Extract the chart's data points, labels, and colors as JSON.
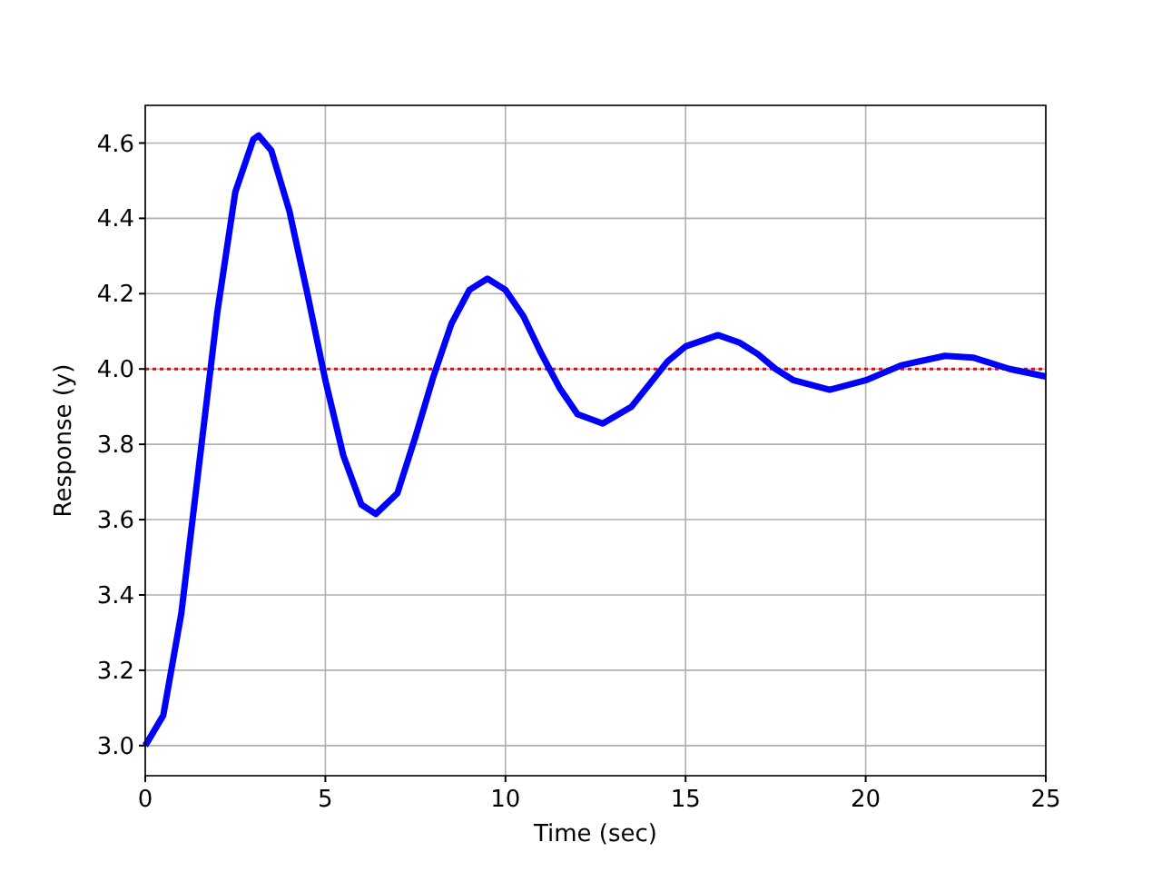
{
  "chart_data": {
    "type": "line",
    "xlabel": "Time (sec)",
    "ylabel": "Response (y)",
    "xlim": [
      0,
      25
    ],
    "ylim": [
      2.92,
      4.7
    ],
    "xticks": [
      0,
      5,
      10,
      15,
      20,
      25
    ],
    "yticks": [
      {
        "value": 3.0,
        "label": "3.0"
      },
      {
        "value": 3.2,
        "label": "3.2"
      },
      {
        "value": 3.4,
        "label": "3.4"
      },
      {
        "value": 3.6,
        "label": "3.6"
      },
      {
        "value": 3.8,
        "label": "3.8"
      },
      {
        "value": 4.0,
        "label": "4.0"
      },
      {
        "value": 4.2,
        "label": "4.2"
      },
      {
        "value": 4.4,
        "label": "4.4"
      },
      {
        "value": 4.6,
        "label": "4.6"
      }
    ],
    "grid": true,
    "line_style": "solid",
    "x": [
      0,
      0.5,
      1,
      1.5,
      2,
      2.5,
      3,
      3.15,
      3.5,
      4,
      4.5,
      5,
      5.5,
      6,
      6.4,
      7,
      7.5,
      8,
      8.5,
      9,
      9.5,
      10,
      10.5,
      11,
      11.5,
      12,
      12.7,
      13.5,
      14,
      14.5,
      15,
      15.9,
      16.5,
      17,
      17.5,
      18,
      19,
      20,
      20.5,
      21,
      22.2,
      23,
      24,
      25
    ],
    "series": [
      {
        "color": "#0000ff",
        "values": [
          3.0,
          3.08,
          3.35,
          3.75,
          4.15,
          4.47,
          4.61,
          4.62,
          4.58,
          4.42,
          4.2,
          3.97,
          3.77,
          3.64,
          3.615,
          3.67,
          3.82,
          3.98,
          4.12,
          4.21,
          4.24,
          4.21,
          4.14,
          4.04,
          3.95,
          3.88,
          3.855,
          3.9,
          3.96,
          4.02,
          4.06,
          4.09,
          4.07,
          4.04,
          4.0,
          3.97,
          3.945,
          3.97,
          3.99,
          4.01,
          4.035,
          4.03,
          4.0,
          3.98
        ]
      }
    ],
    "ref_lines": [
      {
        "axis": "y",
        "value": 4.0,
        "color": "#ff0000",
        "line_style": "dotted"
      }
    ]
  }
}
